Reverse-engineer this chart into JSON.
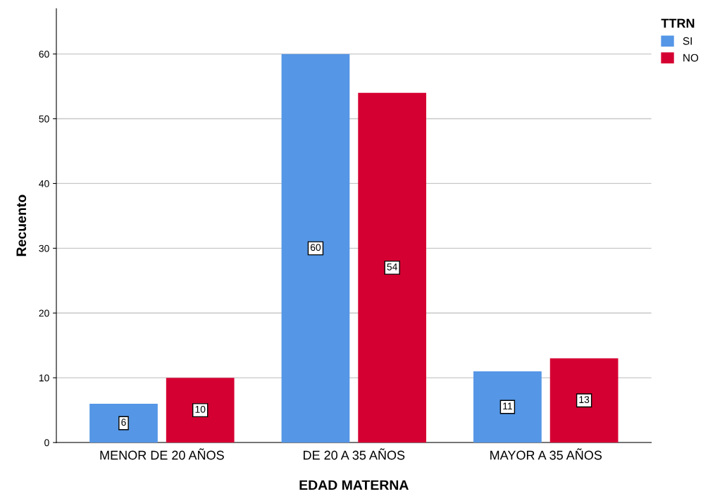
{
  "chart_data": {
    "type": "bar",
    "xlabel": "EDAD MATERNA",
    "ylabel": "Recuento",
    "legend_title": "TTRN",
    "categories": [
      "MENOR DE 20 AÑOS",
      "DE 20 A 35 AÑOS",
      "MAYOR A 35 AÑOS"
    ],
    "series": [
      {
        "name": "SI",
        "color": "#5596e6",
        "values": [
          6,
          60,
          11
        ]
      },
      {
        "name": "NO",
        "color": "#d50032",
        "values": [
          10,
          54,
          13
        ]
      }
    ],
    "ylim": [
      0,
      67
    ],
    "yticks": [
      0,
      10,
      20,
      30,
      40,
      50,
      60
    ],
    "grid": "y",
    "legend": "top right",
    "data_labels": true
  }
}
